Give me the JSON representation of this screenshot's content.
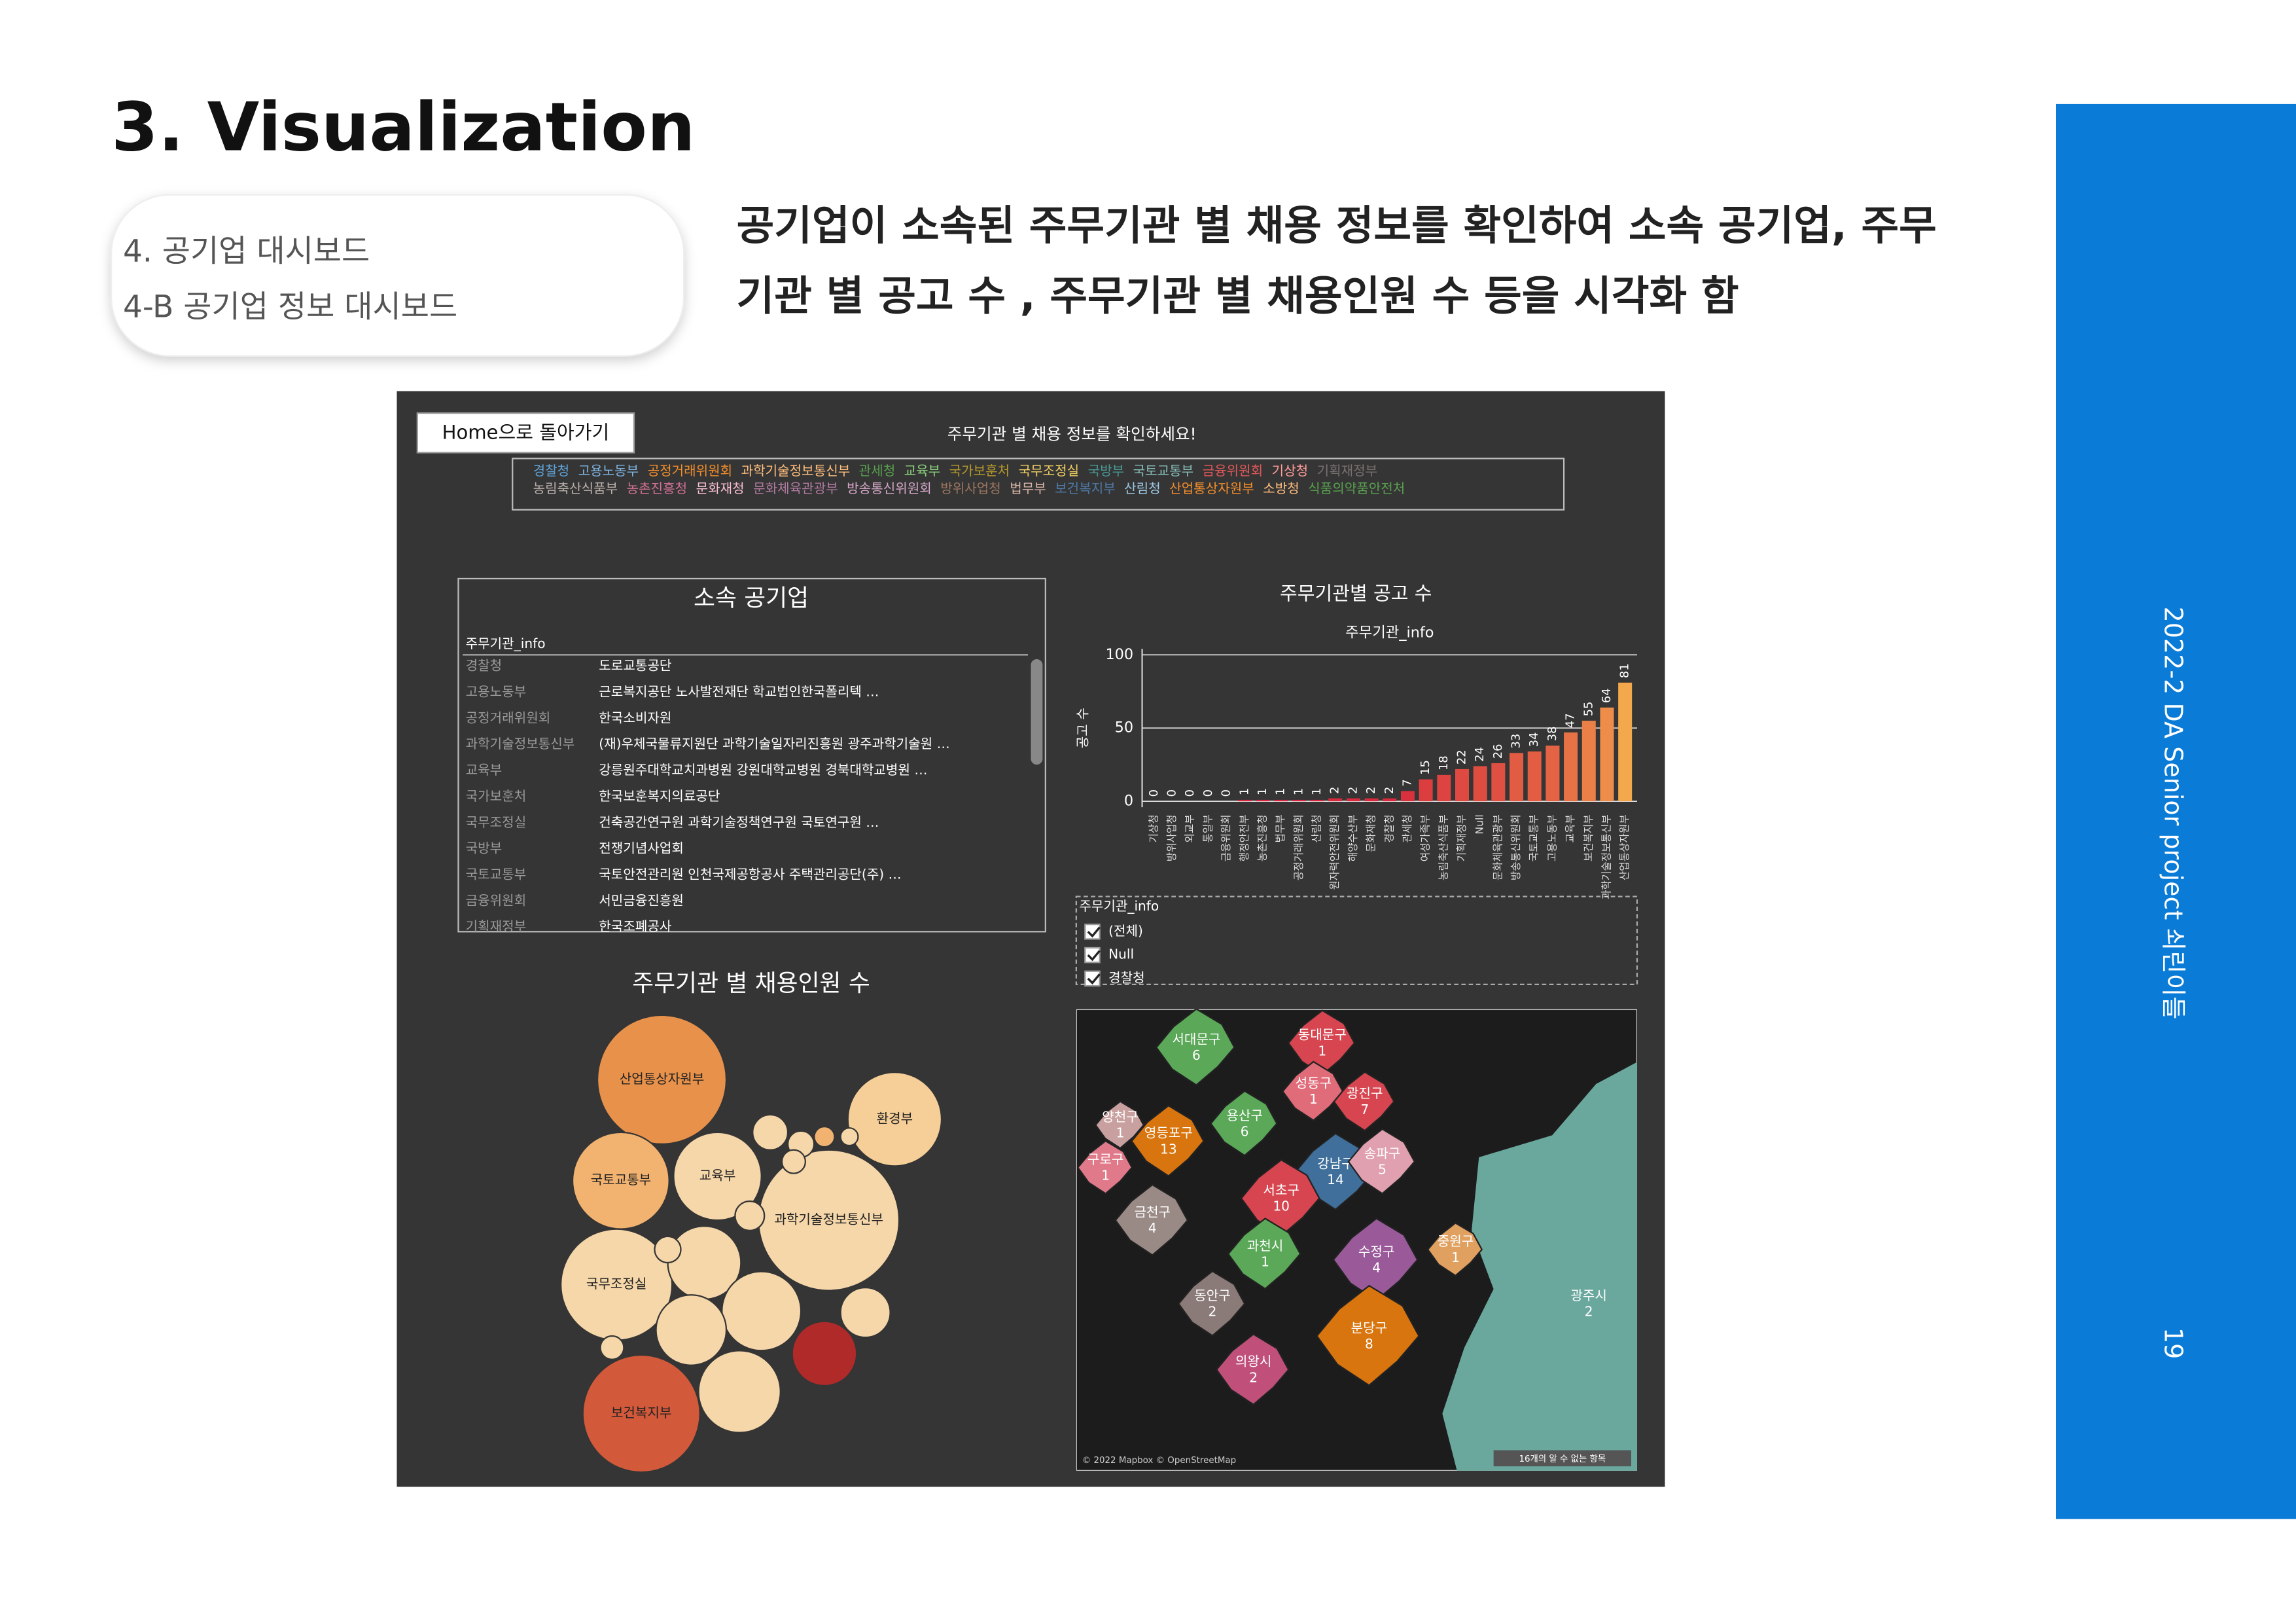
{
  "slide": {
    "title": "3. Visualization",
    "section": [
      "4. 공기업 대시보드",
      "4-B 공기업 정보 대시보드"
    ],
    "description": [
      "공기업이 소속된 주무기관 별 채용 정보를 확인하여 소속 공기업, 주무",
      "기관 별 공고 수 , 주무기관 별 채용인원 수 등을 시각화 함"
    ],
    "sidebar": "2022-2 DA Senior project 쇠린이들",
    "page": "19"
  },
  "dashboard": {
    "home_button": "Home으로 돌아가기",
    "header": "주무기관 별 채용 정보를 확인하세요!",
    "legend": [
      [
        {
          "name": "경찰청",
          "color": "#5fa3d8"
        },
        {
          "name": "고용노동부",
          "color": "#7fb3e0"
        },
        {
          "name": "공정거래위원회",
          "color": "#f28e2b"
        },
        {
          "name": "과학기술정보통신부",
          "color": "#ffbe7d"
        },
        {
          "name": "관세청",
          "color": "#59a14f"
        },
        {
          "name": "교육부",
          "color": "#8cd17d"
        },
        {
          "name": "국가보훈처",
          "color": "#b6992d"
        },
        {
          "name": "국무조정실",
          "color": "#f1ce63"
        },
        {
          "name": "국방부",
          "color": "#499894"
        },
        {
          "name": "국토교통부",
          "color": "#86bcb6"
        },
        {
          "name": "금융위원회",
          "color": "#e15759"
        },
        {
          "name": "기상청",
          "color": "#ff9d9a"
        },
        {
          "name": "기획재정부",
          "color": "#79706e"
        }
      ],
      [
        {
          "name": "농림축산식품부",
          "color": "#bab0ac"
        },
        {
          "name": "농촌진흥청",
          "color": "#d37295"
        },
        {
          "name": "문화재청",
          "color": "#fabfd2"
        },
        {
          "name": "문화체육관광부",
          "color": "#b07aa1"
        },
        {
          "name": "방송통신위원회",
          "color": "#d4a6c8"
        },
        {
          "name": "방위사업청",
          "color": "#9d7660"
        },
        {
          "name": "법무부",
          "color": "#d7b5a6"
        },
        {
          "name": "보건복지부",
          "color": "#4e79a7"
        },
        {
          "name": "산림청",
          "color": "#a0cbe8"
        },
        {
          "name": "산업통상자원부",
          "color": "#f28e2b"
        },
        {
          "name": "소방청",
          "color": "#ffbe7d"
        },
        {
          "name": "식품의약품안전처",
          "color": "#59a14f"
        }
      ]
    ],
    "table": {
      "title": "소속 공기업",
      "column": "주무기관_info",
      "rows": [
        [
          "경찰청",
          "도로교통공단"
        ],
        [
          "고용노동부",
          "근로복지공단  노사발전재단  학교법인한국폴리텍  …"
        ],
        [
          "공정거래위원회",
          "한국소비자원"
        ],
        [
          "과학기술정보통신부",
          "(재)우체국물류지원단  과학기술일자리진흥원  광주과학기술원  …"
        ],
        [
          "교육부",
          "강릉원주대학교치과병원  강원대학교병원  경북대학교병원  …"
        ],
        [
          "국가보훈처",
          "한국보훈복지의료공단"
        ],
        [
          "국무조정실",
          "건축공간연구원  과학기술정책연구원  국토연구원  …"
        ],
        [
          "국방부",
          "전쟁기념사업회"
        ],
        [
          "국토교통부",
          "국토안전관리원  인천국제공항공사  주택관리공단(주)  …"
        ],
        [
          "금융위원회",
          "서민금융진흥원"
        ],
        [
          "기획재정부",
          "한국조폐공사"
        ]
      ]
    },
    "filter": {
      "title": "주무기관_info",
      "options": [
        "(전체)",
        "Null",
        "경찰청"
      ]
    },
    "bubbles": {
      "title": "주무기관 별 채용인원 수",
      "items": [
        {
          "label": "산업통상자원부",
          "value": 484,
          "color": "#e8914a"
        },
        {
          "label": "환경부",
          "value": 256,
          "color": "#f6cf98"
        },
        {
          "label": "국토교통부",
          "value": 272,
          "color": "#f3b370"
        },
        {
          "label": "교육부",
          "value": 225,
          "color": "#f6d7aa"
        },
        {
          "label": "과학기술정보통신부",
          "value": 576,
          "color": "#f6d7aa"
        },
        {
          "label": "국무조정실",
          "value": 361,
          "color": "#f6d7aa"
        },
        {
          "label": "보건복지부",
          "value": 400,
          "color": "#d2593a"
        },
        {
          "label": null,
          "value": 156,
          "color": "#f6d7aa"
        },
        {
          "label": null,
          "value": 182,
          "color": "#f6d7aa"
        },
        {
          "label": null,
          "value": 144,
          "color": "#f6d7aa"
        },
        {
          "label": null,
          "value": 196,
          "color": "#f6d7aa"
        },
        {
          "label": null,
          "value": 121,
          "color": "#b02a2a"
        },
        {
          "label": null,
          "value": 72,
          "color": "#f6d7aa"
        },
        {
          "label": null,
          "value": 36,
          "color": "#f6d7aa"
        },
        {
          "label": null,
          "value": 20,
          "color": "#f6d7aa"
        },
        {
          "label": null,
          "value": 12,
          "color": "#f3b370"
        },
        {
          "label": null,
          "value": 16,
          "color": "#f6d7aa"
        },
        {
          "label": null,
          "value": 9,
          "color": "#f6d7aa"
        },
        {
          "label": null,
          "value": 16,
          "color": "#f6d7aa"
        },
        {
          "label": null,
          "value": 20,
          "color": "#f6d7aa"
        },
        {
          "label": null,
          "value": 25,
          "color": "#f6d7aa"
        }
      ]
    },
    "map": {
      "regions": [
        {
          "name": "서대문구",
          "value": 6,
          "color": "#5aa858"
        },
        {
          "name": "동대문구",
          "value": 1,
          "color": "#d64550"
        },
        {
          "name": "성동구",
          "value": 1,
          "color": "#e06c7a"
        },
        {
          "name": "광진구",
          "value": 7,
          "color": "#d64550"
        },
        {
          "name": "양천구",
          "value": 1,
          "color": "#c9a0a0"
        },
        {
          "name": "영등포구",
          "value": 13,
          "color": "#d8750f"
        },
        {
          "name": "용산구",
          "value": 6,
          "color": "#5aa858"
        },
        {
          "name": "구로구",
          "value": 1,
          "color": "#e07a8a"
        },
        {
          "name": "강남구",
          "value": 14,
          "color": "#3f6f9a"
        },
        {
          "name": "송파구",
          "value": 5,
          "color": "#e0a0b0"
        },
        {
          "name": "서초구",
          "value": 10,
          "color": "#d64550"
        },
        {
          "name": "금천구",
          "value": 4,
          "color": "#9a8a86"
        },
        {
          "name": "과천시",
          "value": 1,
          "color": "#5aa858"
        },
        {
          "name": "수정구",
          "value": 4,
          "color": "#9a5a9a"
        },
        {
          "name": "중원구",
          "value": 1,
          "color": "#e0a060"
        },
        {
          "name": "광주시",
          "value": 2,
          "color": "#6aa89e"
        },
        {
          "name": "동안구",
          "value": 2,
          "color": "#8a7a78"
        },
        {
          "name": "분당구",
          "value": 8,
          "color": "#d8750f"
        },
        {
          "name": "의왕시",
          "value": 2,
          "color": "#c0507a"
        }
      ],
      "credit": "© 2022 Mapbox © OpenStreetMap",
      "note": "16개의 알 수 없는 항목"
    }
  },
  "chart_data": {
    "type": "bar",
    "title": "주무기관별 공고 수",
    "subtitle": "주무기관_info",
    "y_label": "공고 수",
    "categories": [
      "기상청",
      "방위사업청",
      "외교부",
      "통일부",
      "금융위원회",
      "행정안전부",
      "농촌진흥청",
      "법무부",
      "공정거래위원회",
      "산림청",
      "원자력안전위원회",
      "해양수산부",
      "문화재청",
      "경찰청",
      "관세청",
      "여성가족부",
      "농림축산식품부",
      "기획재정부",
      "Null",
      "문화체육관광부",
      "방송통신위원회",
      "국토교통부",
      "고용노동부",
      "교육부",
      "보건복지부",
      "과학기술정보통신부",
      "산업통상자원부"
    ],
    "values": [
      0,
      0,
      0,
      0,
      0,
      1,
      1,
      1,
      1,
      1,
      2,
      2,
      2,
      2,
      7,
      15,
      18,
      22,
      24,
      26,
      33,
      34,
      38,
      47,
      55,
      64,
      81
    ],
    "ylim": [
      0,
      100
    ],
    "yticks": [
      0,
      50,
      100
    ],
    "grid": true,
    "color_range": [
      "#d7263d",
      "#f9c74f"
    ]
  }
}
